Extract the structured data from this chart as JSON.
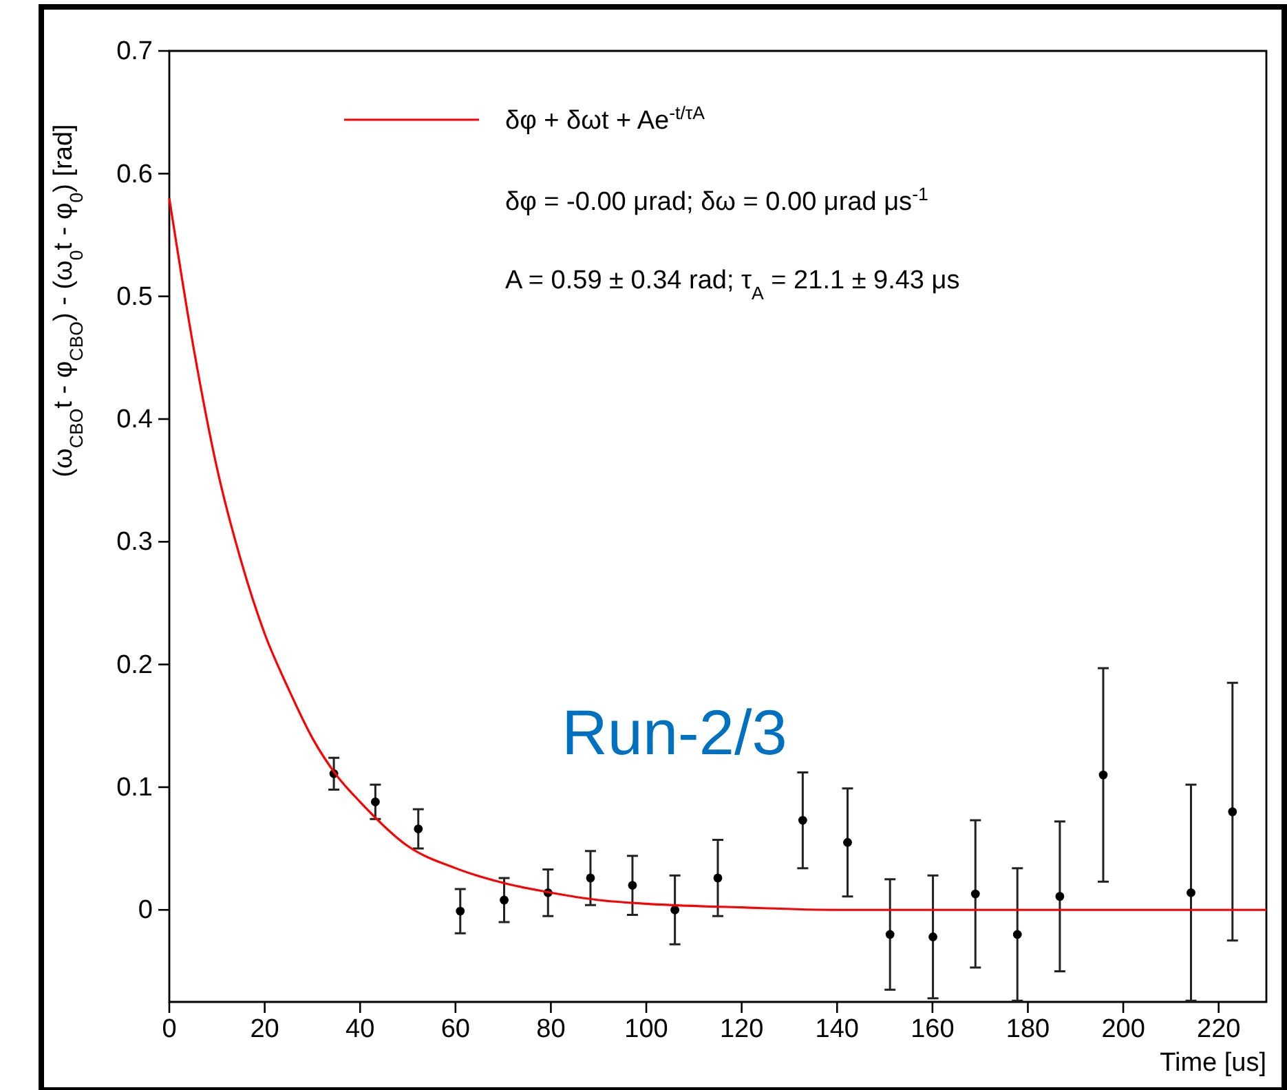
{
  "chart_data": {
    "type": "scatter",
    "xlabel": "Time [us]",
    "ylabel": "(ω$_{CBO}$t - φ$_{CBO}$) - (ω$_{0}$t - φ$_{0}$) [rad]",
    "xlim": [
      0,
      230
    ],
    "xticks": [
      0,
      20,
      40,
      60,
      80,
      100,
      120,
      140,
      160,
      180,
      200,
      220
    ],
    "ylim": [
      -0.075,
      0.7
    ],
    "yticks": [
      0,
      0.1,
      0.2,
      0.3,
      0.4,
      0.5,
      0.6,
      0.7
    ],
    "grid": false,
    "legend": "top",
    "marker": "circle",
    "series": [
      {
        "type": "scatter",
        "color": "#000000",
        "x": [
          34.5,
          43.2,
          52.2,
          61.0,
          70.2,
          79.4,
          88.3,
          97.1,
          106.0,
          115.0,
          132.8,
          142.2,
          151.1,
          160.1,
          169.0,
          177.8,
          186.7,
          195.8,
          214.2,
          222.9
        ],
        "values": [
          0.111,
          0.088,
          0.066,
          -0.001,
          0.008,
          0.014,
          0.026,
          0.02,
          0.0,
          0.026,
          0.073,
          0.055,
          -0.02,
          -0.022,
          0.013,
          -0.02,
          0.011,
          0.11,
          0.014,
          0.08
        ],
        "errors": [
          0.013,
          0.014,
          0.016,
          0.018,
          0.018,
          0.019,
          0.022,
          0.024,
          0.028,
          0.031,
          0.039,
          0.044,
          0.045,
          0.05,
          0.06,
          0.054,
          0.061,
          0.087,
          0.088,
          0.105
        ]
      },
      {
        "type": "line",
        "name": "δφ + δωt + Ae$^{-t/τA}$",
        "color": "#ff0000",
        "marker": "none",
        "line_style": "solid",
        "x": [
          0,
          5,
          10,
          15,
          20,
          25,
          30,
          35,
          40,
          50,
          60,
          70,
          80,
          90,
          100,
          120,
          140,
          230
        ],
        "values": [
          0.58,
          0.46,
          0.36,
          0.285,
          0.225,
          0.18,
          0.14,
          0.11,
          0.088,
          0.052,
          0.034,
          0.022,
          0.014,
          0.008,
          0.005,
          0.002,
          0,
          0
        ]
      }
    ],
    "annotations": [
      "δφ = -0.00 μrad; δω = 0.00 μrad μs$^{-1}$",
      "A = 0.59 ± 0.34 rad; τ$_{A}$ = 21.1 ± 9.43 μs",
      "Run-2/3"
    ]
  }
}
